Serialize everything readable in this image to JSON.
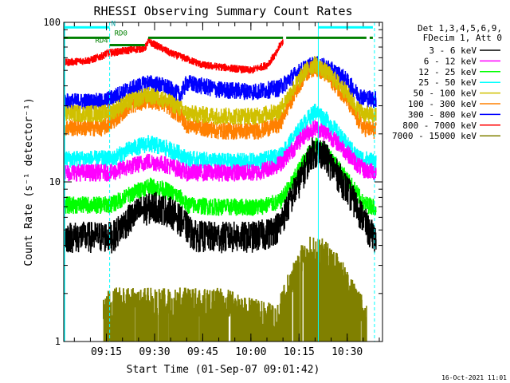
{
  "chart_data": {
    "type": "line",
    "title": "RHESSI Observing Summary Count Rates",
    "xlabel": "Start Time (01-Sep-07 09:01:42)",
    "ylabel": "Count Rate (s⁻¹ detector⁻¹)",
    "y_scale": "log",
    "ylim": [
      1,
      100
    ],
    "y_ticks": [
      {
        "value": 1,
        "label": "1"
      },
      {
        "value": 10,
        "label": "10"
      },
      {
        "value": 100,
        "label": "100"
      }
    ],
    "xlim": [
      "09:01:42",
      "10:41:00"
    ],
    "x_ticks": [
      "09:15",
      "09:30",
      "09:45",
      "10:00",
      "10:15",
      "10:30"
    ],
    "legend": {
      "placement": "right",
      "header": [
        "Det 1,3,4,5,6,9,",
        "FDecim 1, Att 0"
      ]
    },
    "series": [
      {
        "name": "3 - 6 keV",
        "color": "#000000",
        "x": [
          "09:02",
          "09:08",
          "09:14",
          "09:17",
          "09:20",
          "09:25",
          "09:30",
          "09:35",
          "09:39",
          "09:42",
          "09:48",
          "09:55",
          "10:00",
          "10:05",
          "10:09",
          "10:12",
          "10:16",
          "10:19",
          "10:22",
          "10:26",
          "10:30",
          "10:33",
          "10:35",
          "10:37",
          "10:39"
        ],
        "y": [
          4.6,
          4.6,
          4.6,
          4.6,
          5.4,
          6.6,
          7.1,
          6.6,
          5.6,
          4.7,
          4.6,
          4.6,
          4.6,
          4.8,
          5.4,
          7.5,
          11,
          15.5,
          15.5,
          12,
          9,
          7,
          6,
          4.8,
          4.6
        ]
      },
      {
        "name": "6 - 12 keV",
        "color": "#ff00ff",
        "x": [
          "09:02",
          "09:14",
          "09:17",
          "09:22",
          "09:28",
          "09:33",
          "09:38",
          "09:40",
          "09:50",
          "10:02",
          "10:09",
          "10:13",
          "10:17",
          "10:20",
          "10:24",
          "10:29",
          "10:33",
          "10:35",
          "10:39"
        ],
        "y": [
          11.5,
          11.5,
          11.5,
          12.5,
          13.5,
          13,
          12,
          11.5,
          11.5,
          11.5,
          13,
          16,
          20,
          22,
          20,
          16,
          13,
          12,
          11.5
        ]
      },
      {
        "name": "12 - 25 keV",
        "color": "#00ff00",
        "x": [
          "09:02",
          "09:14",
          "09:17",
          "09:22",
          "09:28",
          "09:33",
          "09:38",
          "09:40",
          "09:50",
          "10:02",
          "10:09",
          "10:13",
          "10:17",
          "10:20",
          "10:24",
          "10:29",
          "10:33",
          "10:35",
          "10:39"
        ],
        "y": [
          7.2,
          7.2,
          7.3,
          8.3,
          9.5,
          9,
          8,
          7.2,
          7,
          7,
          7.5,
          10,
          14,
          17,
          15,
          11,
          8.5,
          7.3,
          7
        ]
      },
      {
        "name": "25 - 50 keV",
        "color": "#00ffff",
        "x": [
          "09:02",
          "09:14",
          "09:17",
          "09:22",
          "09:28",
          "09:33",
          "09:38",
          "09:40",
          "09:50",
          "10:02",
          "10:09",
          "10:13",
          "10:17",
          "10:20",
          "10:24",
          "10:29",
          "10:33",
          "10:35",
          "10:39"
        ],
        "y": [
          14,
          14,
          14,
          16,
          17.5,
          16.5,
          15,
          14,
          13.5,
          13.5,
          14.5,
          18.5,
          24,
          28,
          24,
          18,
          14.5,
          14,
          13.5
        ]
      },
      {
        "name": "50 - 100 keV",
        "color": "#d0c000",
        "x": [
          "09:02",
          "09:14",
          "09:17",
          "09:22",
          "09:28",
          "09:33",
          "09:38",
          "09:40",
          "09:50",
          "10:02",
          "10:09",
          "10:13",
          "10:17",
          "10:20",
          "10:24",
          "10:29",
          "10:33",
          "10:35",
          "10:39"
        ],
        "y": [
          27,
          27,
          28,
          32,
          35,
          33,
          29,
          27,
          26,
          26,
          28,
          38,
          50,
          55,
          48,
          38,
          29,
          27,
          26
        ]
      },
      {
        "name": "100 - 300 keV",
        "color": "#ff8000",
        "x": [
          "09:02",
          "09:14",
          "09:17",
          "09:22",
          "09:28",
          "09:33",
          "09:38",
          "09:40",
          "09:50",
          "10:02",
          "10:09",
          "10:13",
          "10:17",
          "10:20",
          "10:24",
          "10:29",
          "10:33",
          "10:35",
          "10:39"
        ],
        "y": [
          22,
          22,
          24,
          30,
          33,
          31,
          26,
          23,
          21,
          21,
          23,
          34,
          48,
          53,
          46,
          35,
          25,
          22,
          21
        ]
      },
      {
        "name": "300 - 800 keV",
        "color": "#0000ff",
        "x": [
          "09:02",
          "09:14",
          "09:17",
          "09:22",
          "09:28",
          "09:33",
          "09:38",
          "09:40",
          "09:50",
          "10:02",
          "10:09",
          "10:13",
          "10:17",
          "10:20",
          "10:24",
          "10:29",
          "10:33",
          "10:35",
          "10:39"
        ],
        "y": [
          32,
          32,
          34,
          38,
          42,
          40,
          35,
          42,
          38,
          37,
          39,
          46,
          52,
          55,
          52,
          45,
          36,
          34,
          33
        ]
      },
      {
        "name": "800 - 7000 keV",
        "color": "#ff0000",
        "x": [
          "09:02",
          "09:10",
          "09:14",
          "09:15",
          "09:27",
          "09:28",
          "09:35",
          "09:45",
          "10:00",
          "10:05",
          "10:08",
          "10:09",
          "10:10"
        ],
        "y": [
          56,
          58,
          62,
          64,
          69,
          76,
          64,
          54,
          50,
          54,
          64,
          72,
          76
        ]
      },
      {
        "name": "7000 - 15000 keV",
        "color": "#808000",
        "x": [
          "09:14",
          "09:16",
          "09:22",
          "09:28",
          "09:34",
          "09:40",
          "09:46",
          "09:52",
          "09:58",
          "10:04",
          "10:08",
          "10:10",
          "10:13",
          "10:16",
          "10:19",
          "10:22",
          "10:25",
          "10:28",
          "10:31",
          "10:34",
          "10:36"
        ],
        "y": [
          1.5,
          1.8,
          1.8,
          1.8,
          1.8,
          1.8,
          1.8,
          1.8,
          1.6,
          1.5,
          1.4,
          1.8,
          2.6,
          3.4,
          3.9,
          3.7,
          3.3,
          2.8,
          2.1,
          1.7,
          1.4
        ]
      }
    ],
    "flags": [
      {
        "label": "N",
        "color": "#00ffff",
        "y": 93,
        "segments": [
          [
            "09:01:42",
            "09:16:00"
          ],
          [
            "10:21:00",
            "10:38:00"
          ]
        ]
      },
      {
        "label": "RD0",
        "color": "#008000",
        "y": 80,
        "segments": [
          [
            "09:01:42",
            "09:16:00"
          ],
          [
            "09:28:00",
            "10:10:00"
          ],
          [
            "10:11:00",
            "10:36:00"
          ],
          [
            "10:37:00",
            "10:38:00"
          ]
        ]
      },
      {
        "label": "RD4",
        "color": "#008000",
        "y": 72,
        "segments": [
          [
            "09:16:00",
            "09:27:00"
          ]
        ]
      }
    ],
    "markers": [
      {
        "time": "09:16:00",
        "color": "#00ffff",
        "style": "dashed"
      },
      {
        "time": "10:21:00",
        "color": "#00ffff",
        "style": "solid"
      },
      {
        "time": "10:38:30",
        "color": "#00ffff",
        "style": "dashed"
      }
    ]
  },
  "footer": {
    "timestamp": "16-Oct-2021 11:01"
  }
}
